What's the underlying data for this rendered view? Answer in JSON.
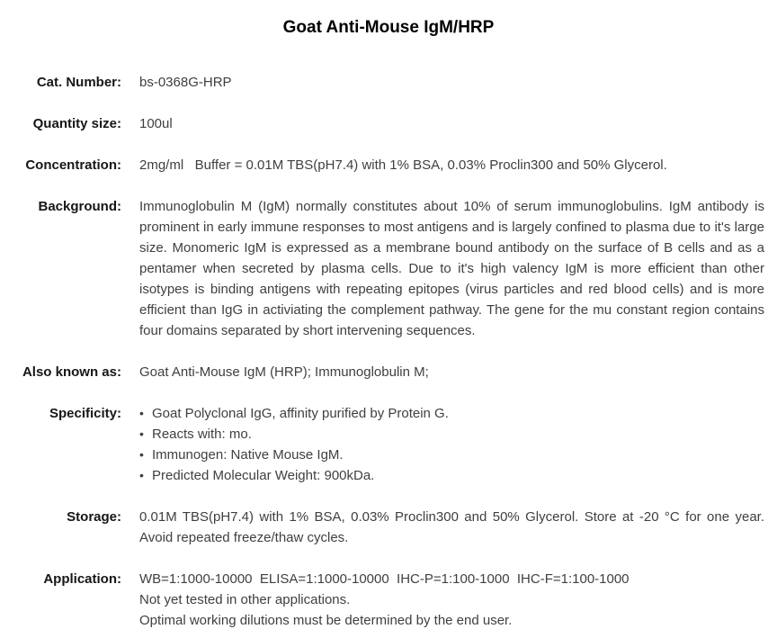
{
  "title": "Goat Anti-Mouse IgM/HRP",
  "bullet_char": "•",
  "colors": {
    "background": "#ffffff",
    "title_text": "#000000",
    "label_text": "#161616",
    "body_text": "#3f3f3f"
  },
  "rows": [
    {
      "label": "Cat. Number:",
      "value": "bs-0368G-HRP"
    },
    {
      "label": "Quantity size:",
      "value": "100ul"
    },
    {
      "label": "Concentration:",
      "value": "2mg/ml   Buffer = 0.01M TBS(pH7.4) with 1% BSA, 0.03% Proclin300 and 50% Glycerol."
    },
    {
      "label": "Background:",
      "value": "Immunoglobulin M (IgM) normally constitutes about 10% of serum immunoglobulins. IgM antibody is prominent in early immune responses to most antigens and is largely confined to plasma due to it's large size. Monomeric IgM is expressed as a membrane bound antibody on the surface of B cells and as a pentamer when secreted by plasma cells. Due to it's high valency IgM is more efficient than other isotypes is binding antigens with repeating epitopes (virus particles and red blood cells) and is more efficient than IgG in activiating the complement pathway. The gene for the mu constant region contains four domains separated by short intervening sequences."
    },
    {
      "label": "Also known as:",
      "value": "Goat Anti-Mouse IgM (HRP); Immunoglobulin M;"
    },
    {
      "label": "Specificity:",
      "items": [
        "Goat Polyclonal IgG, affinity purified by Protein G.",
        "Reacts with: mo.",
        "Immunogen: Native Mouse IgM.",
        "Predicted Molecular Weight: 900kDa."
      ]
    },
    {
      "label": "Storage:",
      "value": "0.01M TBS(pH7.4) with 1% BSA, 0.03% Proclin300 and 50% Glycerol. Store at -20 °C for one year. Avoid repeated freeze/thaw cycles."
    },
    {
      "label": "Application:",
      "lines": [
        "WB=1:1000-10000  ELISA=1:1000-10000  IHC-P=1:100-1000  IHC-F=1:100-1000",
        "Not yet tested in other applications.",
        "Optimal working dilutions must be determined by the end user."
      ]
    }
  ]
}
